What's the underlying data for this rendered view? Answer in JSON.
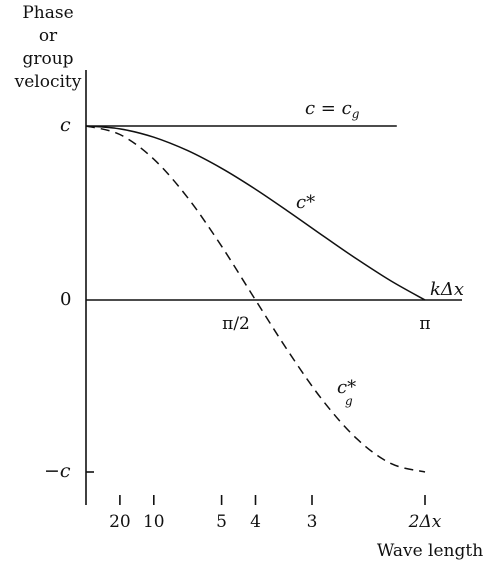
{
  "chart_data": {
    "type": "line",
    "ylabel_lines": [
      "Phase",
      "or",
      "group",
      "velocity"
    ],
    "xlabel": "kΔx",
    "xlabel_secondary": "Wave length",
    "xlim": [
      0,
      3.1416
    ],
    "ylim": [
      -1,
      1
    ],
    "y_ticks": [
      {
        "value": 1,
        "label": "c"
      },
      {
        "value": 0,
        "label": "0"
      },
      {
        "value": -1,
        "label": "−c"
      }
    ],
    "x_ticks": [
      {
        "value": 1.5708,
        "label": "π/2"
      },
      {
        "value": 3.1416,
        "label": "π"
      }
    ],
    "wavelength_ticks": [
      {
        "value": 0.3142,
        "label": "20"
      },
      {
        "value": 0.6283,
        "label": "10"
      },
      {
        "value": 1.2566,
        "label": "5"
      },
      {
        "value": 1.5708,
        "label": "4"
      },
      {
        "value": 2.0944,
        "label": "3"
      },
      {
        "value": 3.1416,
        "label": "2Δx"
      }
    ],
    "series": [
      {
        "name": "c = c_g",
        "label_main": "c = c",
        "label_sub": "g",
        "style": "solid",
        "x": [
          0,
          2.88
        ],
        "y": [
          1,
          1
        ]
      },
      {
        "name": "c*",
        "label_main": "c*",
        "label_sub": "",
        "style": "solid",
        "x": [
          0,
          0.3142,
          0.6283,
          0.9425,
          1.2566,
          1.5708,
          1.885,
          2.1991,
          2.5133,
          2.8274,
          3.1416
        ],
        "y": [
          1,
          0.9836,
          0.9355,
          0.8584,
          0.7568,
          0.6366,
          0.5046,
          0.3679,
          0.2339,
          0.1093,
          0
        ]
      },
      {
        "name": "c*_g",
        "label_main": "c*",
        "label_sub": "g",
        "style": "dashed",
        "x": [
          0,
          0.3142,
          0.6283,
          0.9425,
          1.2566,
          1.5708,
          1.885,
          2.1991,
          2.5133,
          2.8274,
          3.1416
        ],
        "y": [
          1,
          0.9511,
          0.809,
          0.5878,
          0.309,
          0,
          -0.309,
          -0.5878,
          -0.809,
          -0.9511,
          -1
        ]
      }
    ]
  }
}
